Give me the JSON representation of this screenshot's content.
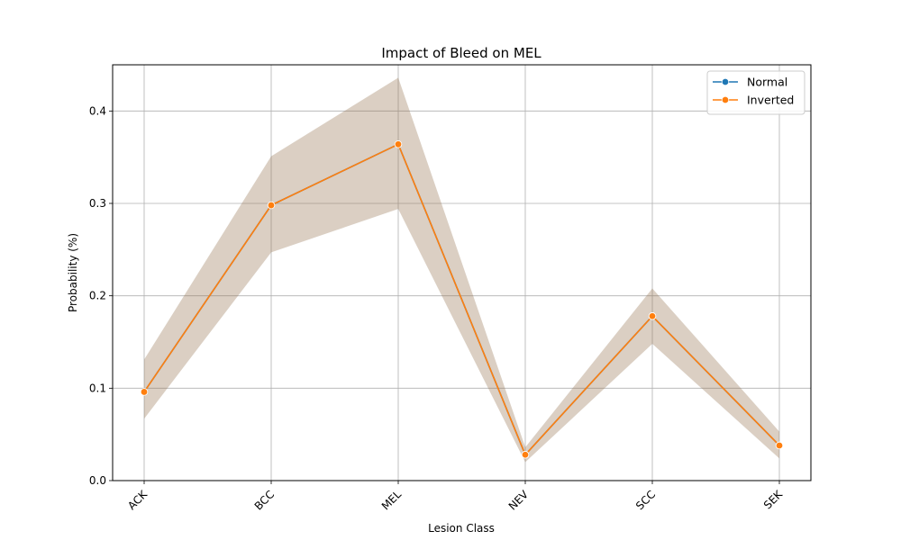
{
  "chart_data": {
    "type": "line",
    "title": "Impact of Bleed on MEL",
    "xlabel": "Lesion Class",
    "ylabel": "Probability (%)",
    "categories": [
      "ACK",
      "BCC",
      "MEL",
      "NEV",
      "SCC",
      "SEK"
    ],
    "ylim": [
      0,
      0.45
    ],
    "yticks": [
      "0.0",
      "0.1",
      "0.2",
      "0.3",
      "0.4"
    ],
    "grid": true,
    "legend_position": "top-right",
    "series": [
      {
        "name": "Normal",
        "color": "#1f77b4",
        "values": [
          0.096,
          0.298,
          0.364,
          0.028,
          0.178,
          0.038
        ],
        "ci_low": [
          0.067,
          0.247,
          0.294,
          0.02,
          0.148,
          0.024
        ],
        "ci_high": [
          0.131,
          0.351,
          0.436,
          0.036,
          0.208,
          0.053
        ]
      },
      {
        "name": "Inverted",
        "color": "#ff7f0e",
        "values": [
          0.096,
          0.298,
          0.364,
          0.028,
          0.178,
          0.038
        ],
        "ci_low": [
          0.067,
          0.247,
          0.294,
          0.02,
          0.148,
          0.024
        ],
        "ci_high": [
          0.131,
          0.351,
          0.436,
          0.036,
          0.208,
          0.053
        ]
      }
    ]
  }
}
